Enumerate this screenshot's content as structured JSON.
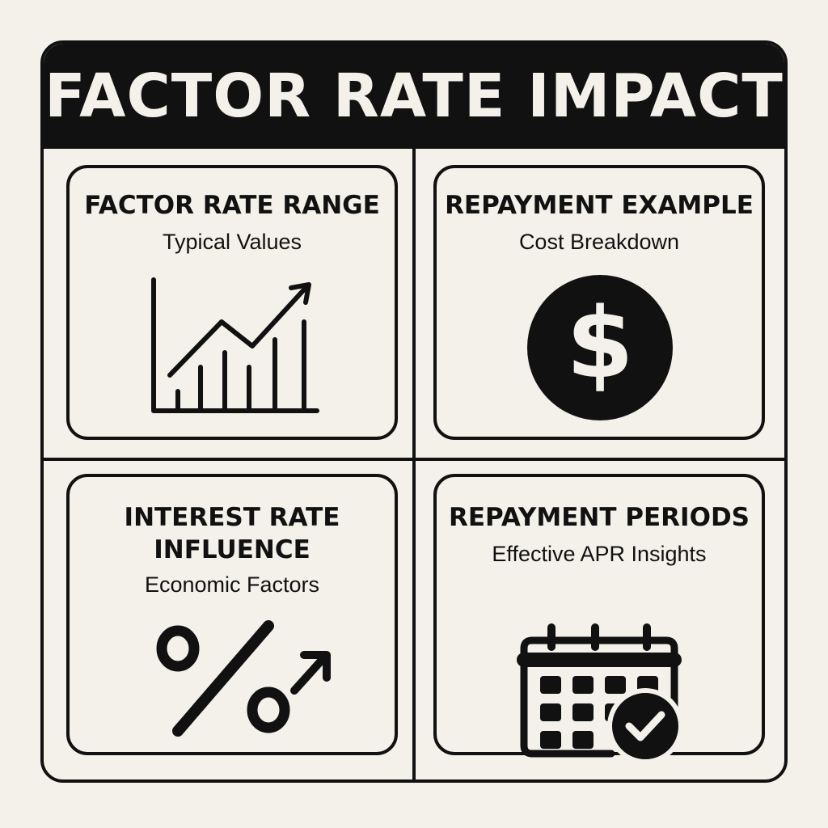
{
  "title": "FACTOR RATE IMPACT",
  "panels": [
    {
      "title": "FACTOR RATE RANGE",
      "subtitle": "Typical Values",
      "icon": "bar-chart-trend-up-icon"
    },
    {
      "title": "REPAYMENT EXAMPLE",
      "subtitle": "Cost Breakdown",
      "icon": "dollar-coin-icon"
    },
    {
      "title_lines": [
        "INTEREST RATE",
        "INFLUENCE"
      ],
      "subtitle": "Economic Factors",
      "icon": "percent-arrow-up-icon"
    },
    {
      "title": "REPAYMENT PERIODS",
      "subtitle": "Effective APR Insights",
      "icon": "calendar-check-icon"
    }
  ],
  "colors": {
    "ink": "#111111",
    "paper": "#f3f1ea"
  }
}
